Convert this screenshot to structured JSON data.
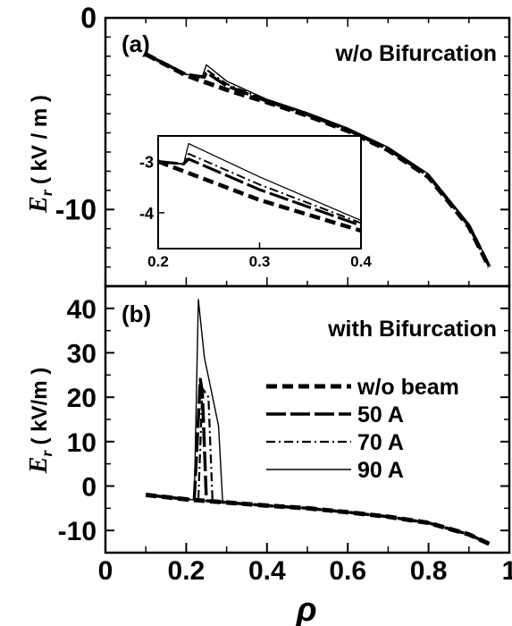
{
  "chart_data": [
    {
      "panel": "(a)",
      "type": "line",
      "annotation": "w/o Bifurcation",
      "ylabel_symbol": "E",
      "ylabel_sub": "r",
      "ylabel_units": "( kV / m )",
      "xlim": [
        0,
        1
      ],
      "ylim": [
        -14,
        0
      ],
      "yticks": [
        0,
        -10
      ],
      "series": [
        {
          "name": "w/o beam",
          "x": [
            0.1,
            0.2,
            0.3,
            0.4,
            0.5,
            0.6,
            0.7,
            0.8,
            0.9,
            0.95
          ],
          "y": [
            -1.9,
            -3.0,
            -3.75,
            -4.4,
            -5.1,
            -5.9,
            -6.9,
            -8.3,
            -10.9,
            -13.0
          ]
        },
        {
          "name": "50 A",
          "x": [
            0.1,
            0.2,
            0.245,
            0.25,
            0.3,
            0.4,
            0.5,
            0.6,
            0.7,
            0.8,
            0.9,
            0.95
          ],
          "y": [
            -1.9,
            -2.95,
            -3.1,
            -2.85,
            -3.55,
            -4.35,
            -5.05,
            -5.85,
            -6.85,
            -8.25,
            -10.85,
            -12.95
          ]
        },
        {
          "name": "70 A",
          "x": [
            0.1,
            0.2,
            0.245,
            0.25,
            0.3,
            0.4,
            0.5,
            0.6,
            0.7,
            0.8,
            0.9,
            0.95
          ],
          "y": [
            -1.9,
            -2.95,
            -3.05,
            -2.7,
            -3.45,
            -4.3,
            -5.0,
            -5.8,
            -6.8,
            -8.2,
            -10.8,
            -12.9
          ]
        },
        {
          "name": "90 A",
          "x": [
            0.1,
            0.2,
            0.24,
            0.25,
            0.3,
            0.4,
            0.5,
            0.6,
            0.7,
            0.8,
            0.9,
            0.95
          ],
          "y": [
            -1.9,
            -2.95,
            -3.05,
            -2.45,
            -3.3,
            -4.25,
            -4.95,
            -5.75,
            -6.75,
            -8.15,
            -10.75,
            -12.85
          ]
        }
      ],
      "inset": {
        "xlim": [
          0.2,
          0.4
        ],
        "ylim": [
          -4.7,
          -2.5
        ],
        "xticks": [
          0.2,
          0.3,
          0.4
        ],
        "yticks": [
          -3,
          -4
        ],
        "series": [
          {
            "name": "w/o beam",
            "x": [
              0.2,
              0.3,
              0.4
            ],
            "y": [
              -3.0,
              -3.75,
              -4.35
            ]
          },
          {
            "name": "50 A",
            "x": [
              0.2,
              0.225,
              0.23,
              0.3,
              0.4
            ],
            "y": [
              -3.0,
              -3.05,
              -2.95,
              -3.55,
              -4.25
            ]
          },
          {
            "name": "70 A",
            "x": [
              0.2,
              0.225,
              0.23,
              0.3,
              0.4
            ],
            "y": [
              -3.0,
              -3.05,
              -2.85,
              -3.45,
              -4.2
            ]
          },
          {
            "name": "90 A",
            "x": [
              0.2,
              0.225,
              0.23,
              0.3,
              0.4
            ],
            "y": [
              -3.0,
              -3.05,
              -2.65,
              -3.3,
              -4.15
            ]
          }
        ]
      }
    },
    {
      "panel": "(b)",
      "type": "line",
      "annotation": "with Bifurcation",
      "ylabel_symbol": "E",
      "ylabel_sub": "r",
      "ylabel_units": "( kV/m )",
      "xlabel": "ρ",
      "xlim": [
        0,
        1
      ],
      "ylim": [
        -15,
        45
      ],
      "xticks": [
        0,
        0.2,
        0.4,
        0.6,
        0.8,
        1
      ],
      "xtick_labels": [
        "0",
        "0.2",
        "0.4",
        "0.6",
        "0.8",
        "1"
      ],
      "yticks": [
        40,
        30,
        20,
        10,
        0,
        -10
      ],
      "legend": [
        "w/o beam",
        "50 A",
        "70 A",
        "90 A"
      ],
      "series": [
        {
          "name": "w/o beam",
          "x": [
            0.1,
            0.2,
            0.3,
            0.4,
            0.5,
            0.6,
            0.7,
            0.8,
            0.9,
            0.95
          ],
          "y": [
            -2.0,
            -3.0,
            -3.7,
            -4.4,
            -5.0,
            -5.9,
            -6.9,
            -8.3,
            -10.9,
            -13.0
          ]
        },
        {
          "name": "50 A",
          "x": [
            0.1,
            0.2,
            0.22,
            0.235,
            0.24,
            0.25,
            0.3,
            0.4,
            0.5,
            0.6,
            0.7,
            0.8,
            0.9,
            0.95
          ],
          "y": [
            -2.0,
            -2.95,
            -3.1,
            24.0,
            21.0,
            -3.3,
            -3.7,
            -4.4,
            -5.0,
            -5.9,
            -6.9,
            -8.3,
            -10.9,
            -13.0
          ]
        },
        {
          "name": "70 A",
          "x": [
            0.1,
            0.2,
            0.23,
            0.24,
            0.255,
            0.265,
            0.3,
            0.4,
            0.5,
            0.6,
            0.7,
            0.8,
            0.9,
            0.95
          ],
          "y": [
            -2.0,
            -2.95,
            -3.1,
            22.0,
            20.0,
            -3.3,
            -3.7,
            -4.4,
            -5.0,
            -5.9,
            -6.9,
            -8.3,
            -10.9,
            -13.0
          ]
        },
        {
          "name": "90 A",
          "x": [
            0.1,
            0.2,
            0.22,
            0.23,
            0.245,
            0.28,
            0.29,
            0.3,
            0.4,
            0.5,
            0.6,
            0.7,
            0.8,
            0.9,
            0.95
          ],
          "y": [
            -2.0,
            -2.95,
            -3.1,
            42.0,
            29.0,
            13.5,
            -3.3,
            -3.7,
            -4.4,
            -5.0,
            -5.9,
            -6.9,
            -8.3,
            -10.9,
            -13.0
          ]
        }
      ]
    }
  ]
}
